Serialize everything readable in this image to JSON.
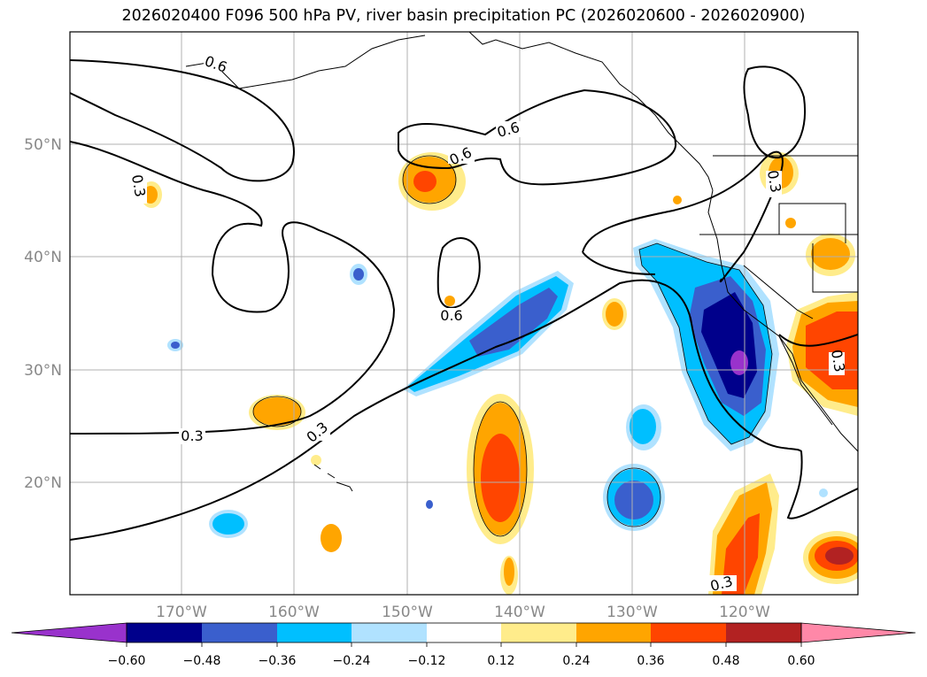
{
  "title": "2026020400 F096 500 hPa PV, river basin precipitation PC (2026020600 - 2026020900)",
  "map": {
    "lon_range": [
      -180,
      -110
    ],
    "lat_range": [
      10,
      60
    ],
    "lon_labels": [
      "170°W",
      "160°W",
      "150°W",
      "140°W",
      "130°W",
      "120°W"
    ],
    "lat_labels": [
      "50°N",
      "40°N",
      "30°N",
      "20°N"
    ],
    "contour_labels": [
      {
        "text": "0.6",
        "id": "pv-06-north"
      },
      {
        "text": "0.6",
        "id": "pv-06-center"
      },
      {
        "text": "0.6",
        "id": "pv-06-ne"
      },
      {
        "text": "0.6",
        "id": "pv-06-loop"
      },
      {
        "text": "0.3",
        "id": "pv-03-west"
      },
      {
        "text": "0.3",
        "id": "pv-03-south"
      },
      {
        "text": "0.3",
        "id": "pv-03-diag"
      },
      {
        "text": "0.3",
        "id": "pv-03-bottom"
      },
      {
        "text": "0.3",
        "id": "pv-03-coast"
      },
      {
        "text": "0.3",
        "id": "pv-03-east"
      }
    ]
  },
  "colorbar": {
    "ticks": [
      "−0.60",
      "−0.48",
      "−0.36",
      "−0.24",
      "−0.12",
      "0.12",
      "0.24",
      "0.36",
      "0.48",
      "0.60"
    ],
    "colors": [
      "#9932cc",
      "#00008b",
      "#3a5fcd",
      "#00bfff",
      "#b0e2ff",
      "#ffffff",
      "#ffec8b",
      "#ffa500",
      "#ff4500",
      "#b22222",
      "#ff88a8"
    ]
  }
}
